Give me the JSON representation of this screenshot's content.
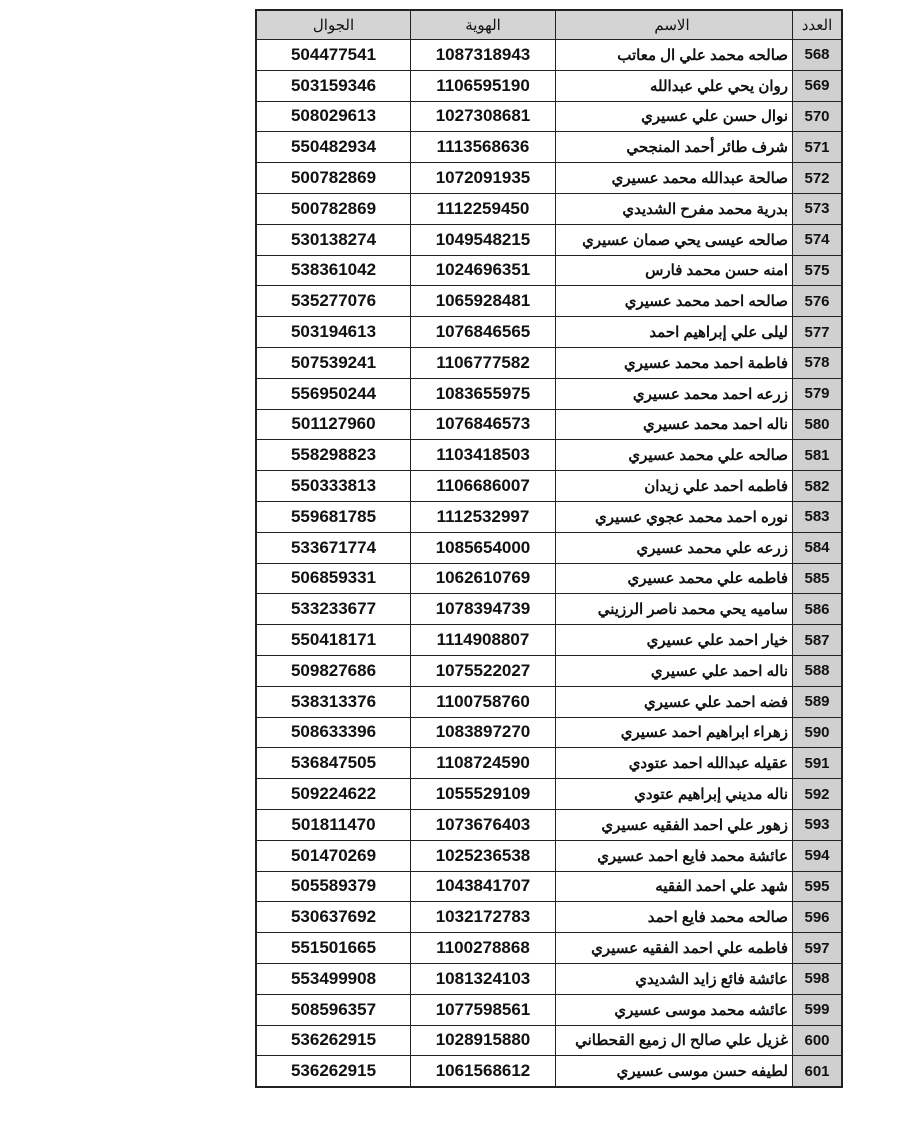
{
  "header": {
    "phone": "الجوال",
    "id": "الهوية",
    "name": "الاسم",
    "num": "العدد"
  },
  "rows": [
    {
      "num": "568",
      "name": "صالحه محمد علي ال معاتب",
      "id": "1087318943",
      "phone": "504477541"
    },
    {
      "num": "569",
      "name": "روان يحي علي عبدالله",
      "id": "1106595190",
      "phone": "503159346"
    },
    {
      "num": "570",
      "name": "نوال حسن علي عسيري",
      "id": "1027308681",
      "phone": "508029613"
    },
    {
      "num": "571",
      "name": "شرف طائر أحمد المنجحي",
      "id": "1113568636",
      "phone": "550482934"
    },
    {
      "num": "572",
      "name": "صالحة عبدالله محمد عسيري",
      "id": "1072091935",
      "phone": "500782869"
    },
    {
      "num": "573",
      "name": "بدرية محمد مفرح الشديدي",
      "id": "1112259450",
      "phone": "500782869"
    },
    {
      "num": "574",
      "name": "صالحه عيسى يحي صمان عسيري",
      "id": "1049548215",
      "phone": "530138274"
    },
    {
      "num": "575",
      "name": "امنه حسن محمد فارس",
      "id": "1024696351",
      "phone": "538361042"
    },
    {
      "num": "576",
      "name": "صالحه احمد محمد عسيري",
      "id": "1065928481",
      "phone": "535277076"
    },
    {
      "num": "577",
      "name": "ليلى علي إبراهيم احمد",
      "id": "1076846565",
      "phone": "503194613"
    },
    {
      "num": "578",
      "name": "فاطمة احمد محمد عسيري",
      "id": "1106777582",
      "phone": "507539241"
    },
    {
      "num": "579",
      "name": "زرعه احمد محمد عسيري",
      "id": "1083655975",
      "phone": "556950244"
    },
    {
      "num": "580",
      "name": "ناله احمد محمد عسيري",
      "id": "1076846573",
      "phone": "501127960"
    },
    {
      "num": "581",
      "name": "صالحه علي محمد عسيري",
      "id": "1103418503",
      "phone": "558298823"
    },
    {
      "num": "582",
      "name": "فاطمه احمد علي زيدان",
      "id": "1106686007",
      "phone": "550333813"
    },
    {
      "num": "583",
      "name": "نوره احمد محمد عجوي عسيري",
      "id": "1112532997",
      "phone": "559681785"
    },
    {
      "num": "584",
      "name": "زرعه علي محمد عسيري",
      "id": "1085654000",
      "phone": "533671774"
    },
    {
      "num": "585",
      "name": "فاطمه علي محمد عسيري",
      "id": "1062610769",
      "phone": "506859331"
    },
    {
      "num": "586",
      "name": "ساميه يحي محمد ناصر الرزيني",
      "id": "1078394739",
      "phone": "533233677"
    },
    {
      "num": "587",
      "name": "خيار احمد علي عسيري",
      "id": "1114908807",
      "phone": "550418171"
    },
    {
      "num": "588",
      "name": "ناله احمد علي عسيري",
      "id": "1075522027",
      "phone": "509827686"
    },
    {
      "num": "589",
      "name": "فضه احمد علي عسيري",
      "id": "1100758760",
      "phone": "538313376"
    },
    {
      "num": "590",
      "name": "زهراء ابراهيم احمد عسيري",
      "id": "1083897270",
      "phone": "508633396"
    },
    {
      "num": "591",
      "name": "عقيله عبدالله احمد عتودي",
      "id": "1108724590",
      "phone": "536847505"
    },
    {
      "num": "592",
      "name": "ناله مديني إبراهيم عتودي",
      "id": "1055529109",
      "phone": "509224622"
    },
    {
      "num": "593",
      "name": "زهور علي احمد الفقيه عسيري",
      "id": "1073676403",
      "phone": "501811470"
    },
    {
      "num": "594",
      "name": "عائشة محمد فايع احمد عسيري",
      "id": "1025236538",
      "phone": "501470269"
    },
    {
      "num": "595",
      "name": "شهد علي احمد الفقيه",
      "id": "1043841707",
      "phone": "505589379"
    },
    {
      "num": "596",
      "name": "صالحه محمد فايع احمد",
      "id": "1032172783",
      "phone": "530637692"
    },
    {
      "num": "597",
      "name": "فاطمه علي احمد الفقيه عسيري",
      "id": "1100278868",
      "phone": "551501665"
    },
    {
      "num": "598",
      "name": "عائشة فائع زايد الشديدي",
      "id": "1081324103",
      "phone": "553499908"
    },
    {
      "num": "599",
      "name": "عائشه محمد موسى عسيري",
      "id": "1077598561",
      "phone": "508596357"
    },
    {
      "num": "600",
      "name": "غزيل علي صالح ال زميع القحطاني",
      "id": "1028915880",
      "phone": "536262915"
    },
    {
      "num": "601",
      "name": "لطيفه حسن موسى عسيري",
      "id": "1061568612",
      "phone": "536262915"
    }
  ]
}
